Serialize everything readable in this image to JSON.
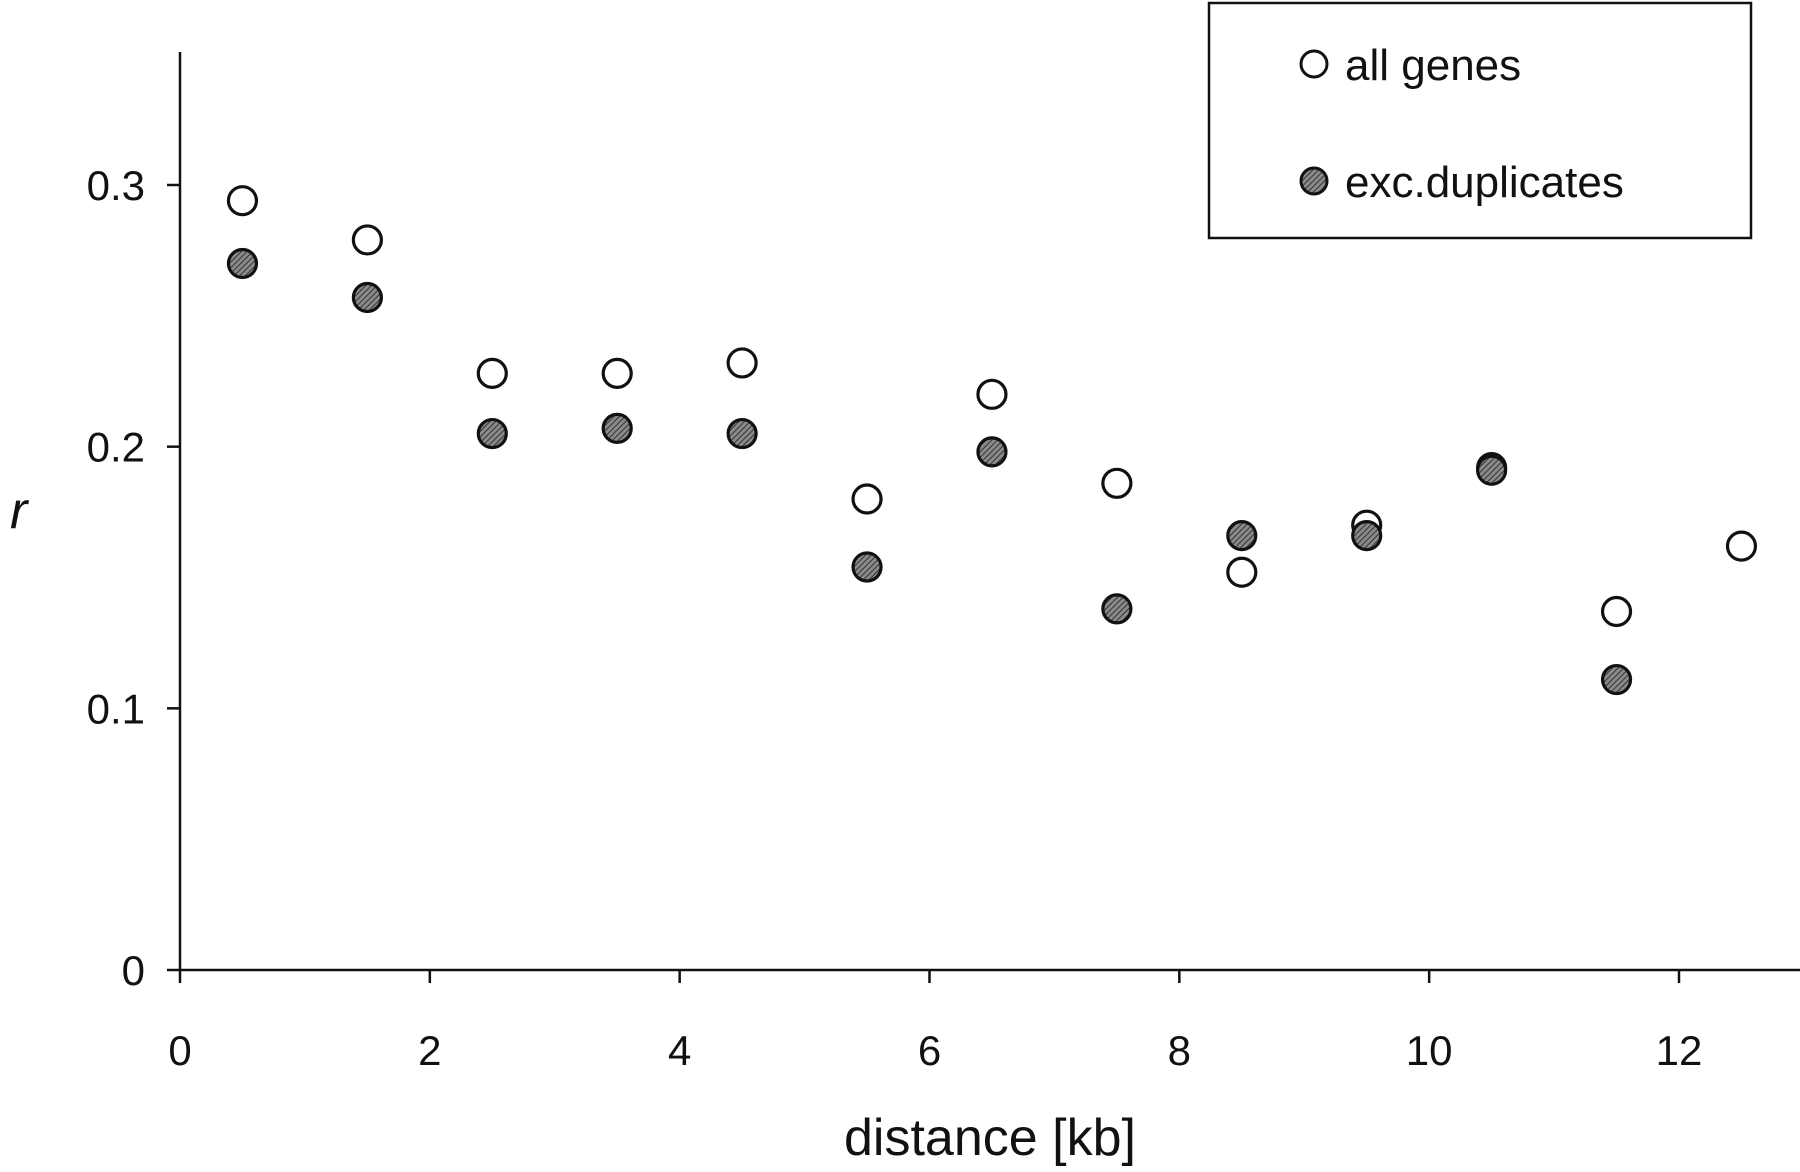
{
  "chart_data": {
    "type": "scatter",
    "title": "",
    "xlabel": "distance [kb]",
    "ylabel": "r",
    "xlim": [
      0,
      13
    ],
    "ylim": [
      0,
      0.35
    ],
    "x_ticks": [
      0,
      2,
      4,
      6,
      8,
      10,
      12
    ],
    "x_tick_labels": [
      "0",
      "2",
      "4",
      "6",
      "8",
      "10",
      "12"
    ],
    "y_ticks": [
      0,
      0.1,
      0.2,
      0.3
    ],
    "y_tick_labels": [
      "0",
      "0.1",
      "0.2",
      "0.3"
    ],
    "grid": false,
    "legend": "top-right",
    "series": [
      {
        "name": "all genes",
        "marker": "open-circle",
        "color": "#ffffff",
        "x": [
          0.5,
          1.5,
          2.5,
          3.5,
          4.5,
          5.5,
          6.5,
          7.5,
          8.5,
          9.5,
          10.5,
          11.5,
          12.5
        ],
        "y": [
          0.294,
          0.279,
          0.228,
          0.228,
          0.232,
          0.18,
          0.22,
          0.186,
          0.152,
          0.17,
          0.192,
          0.137,
          0.162
        ]
      },
      {
        "name": "exc.duplicates",
        "marker": "filled-circle",
        "color": "#555555",
        "x": [
          0.5,
          1.5,
          2.5,
          3.5,
          4.5,
          5.5,
          6.5,
          7.5,
          8.5,
          9.5,
          10.5,
          11.5
        ],
        "y": [
          0.27,
          0.257,
          0.205,
          0.207,
          0.205,
          0.154,
          0.198,
          0.138,
          0.166,
          0.166,
          0.191,
          0.111
        ]
      }
    ]
  }
}
